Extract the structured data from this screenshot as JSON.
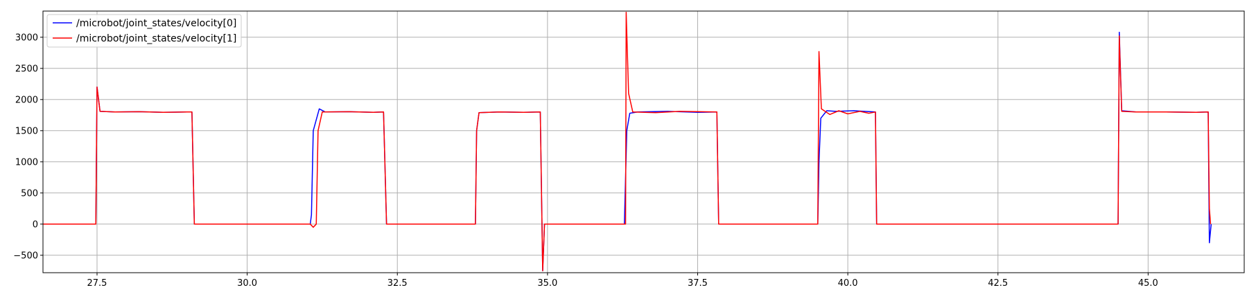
{
  "chart_data": {
    "type": "line",
    "title": "",
    "xlabel": "",
    "ylabel": "",
    "xlim": [
      26.6,
      46.6
    ],
    "ylim": [
      -780,
      3420
    ],
    "xticks": [
      27.5,
      30.0,
      32.5,
      35.0,
      37.5,
      40.0,
      42.5,
      45.0
    ],
    "xtick_labels": [
      "27.5",
      "30.0",
      "32.5",
      "35.0",
      "37.5",
      "40.0",
      "42.5",
      "45.0"
    ],
    "yticks": [
      -500,
      0,
      500,
      1000,
      1500,
      2000,
      2500,
      3000
    ],
    "ytick_labels": [
      "−500",
      "0",
      "500",
      "1000",
      "1500",
      "2000",
      "2500",
      "3000"
    ],
    "grid": true,
    "legend_position": "upper-left",
    "series": [
      {
        "name": "/microbot/joint_states/velocity[0]",
        "color": "#0000ff",
        "points": [
          [
            26.6,
            0
          ],
          [
            27.48,
            0
          ],
          [
            27.5,
            2200
          ],
          [
            27.55,
            1810
          ],
          [
            27.8,
            1800
          ],
          [
            28.2,
            1805
          ],
          [
            28.6,
            1795
          ],
          [
            29.0,
            1800
          ],
          [
            29.08,
            1800
          ],
          [
            29.12,
            0
          ],
          [
            30.5,
            0
          ],
          [
            31.05,
            0
          ],
          [
            31.07,
            150
          ],
          [
            31.1,
            1500
          ],
          [
            31.2,
            1850
          ],
          [
            31.3,
            1800
          ],
          [
            31.7,
            1805
          ],
          [
            32.1,
            1795
          ],
          [
            32.27,
            1800
          ],
          [
            32.32,
            0
          ],
          [
            33.8,
            0
          ],
          [
            33.82,
            1500
          ],
          [
            33.86,
            1790
          ],
          [
            34.2,
            1800
          ],
          [
            34.6,
            1795
          ],
          [
            34.88,
            1800
          ],
          [
            34.92,
            -750
          ],
          [
            34.95,
            0
          ],
          [
            36.28,
            0
          ],
          [
            36.32,
            1500
          ],
          [
            36.37,
            1780
          ],
          [
            36.5,
            1800
          ],
          [
            37.0,
            1810
          ],
          [
            37.5,
            1795
          ],
          [
            37.82,
            1800
          ],
          [
            37.85,
            0
          ],
          [
            39.5,
            0
          ],
          [
            39.52,
            1000
          ],
          [
            39.55,
            1700
          ],
          [
            39.65,
            1820
          ],
          [
            39.8,
            1810
          ],
          [
            40.1,
            1820
          ],
          [
            40.46,
            1800
          ],
          [
            40.48,
            0
          ],
          [
            44.5,
            0
          ],
          [
            44.52,
            3080
          ],
          [
            44.56,
            1820
          ],
          [
            44.8,
            1800
          ],
          [
            45.3,
            1800
          ],
          [
            45.8,
            1795
          ],
          [
            46.0,
            1800
          ],
          [
            46.02,
            -300
          ],
          [
            46.05,
            0
          ]
        ]
      },
      {
        "name": "/microbot/joint_states/velocity[1]",
        "color": "#ff0000",
        "points": [
          [
            26.6,
            0
          ],
          [
            27.48,
            0
          ],
          [
            27.5,
            2200
          ],
          [
            27.55,
            1810
          ],
          [
            27.8,
            1800
          ],
          [
            28.2,
            1805
          ],
          [
            28.6,
            1795
          ],
          [
            29.0,
            1800
          ],
          [
            29.08,
            1800
          ],
          [
            29.12,
            0
          ],
          [
            31.05,
            0
          ],
          [
            31.1,
            -50
          ],
          [
            31.15,
            0
          ],
          [
            31.18,
            1500
          ],
          [
            31.25,
            1800
          ],
          [
            31.7,
            1805
          ],
          [
            32.1,
            1795
          ],
          [
            32.27,
            1800
          ],
          [
            32.32,
            0
          ],
          [
            33.8,
            0
          ],
          [
            33.82,
            1500
          ],
          [
            33.86,
            1790
          ],
          [
            34.2,
            1800
          ],
          [
            34.6,
            1795
          ],
          [
            34.88,
            1800
          ],
          [
            34.92,
            -750
          ],
          [
            34.95,
            0
          ],
          [
            36.3,
            0
          ],
          [
            36.31,
            3400
          ],
          [
            36.35,
            2100
          ],
          [
            36.42,
            1800
          ],
          [
            36.8,
            1790
          ],
          [
            37.2,
            1810
          ],
          [
            37.82,
            1800
          ],
          [
            37.85,
            0
          ],
          [
            39.5,
            0
          ],
          [
            39.52,
            2770
          ],
          [
            39.56,
            1850
          ],
          [
            39.7,
            1760
          ],
          [
            39.85,
            1820
          ],
          [
            40.0,
            1770
          ],
          [
            40.2,
            1810
          ],
          [
            40.35,
            1780
          ],
          [
            40.46,
            1800
          ],
          [
            40.48,
            0
          ],
          [
            44.5,
            0
          ],
          [
            44.52,
            3020
          ],
          [
            44.56,
            1810
          ],
          [
            44.8,
            1800
          ],
          [
            45.3,
            1800
          ],
          [
            45.8,
            1795
          ],
          [
            46.0,
            1800
          ],
          [
            46.02,
            250
          ],
          [
            46.04,
            0
          ]
        ]
      }
    ]
  }
}
